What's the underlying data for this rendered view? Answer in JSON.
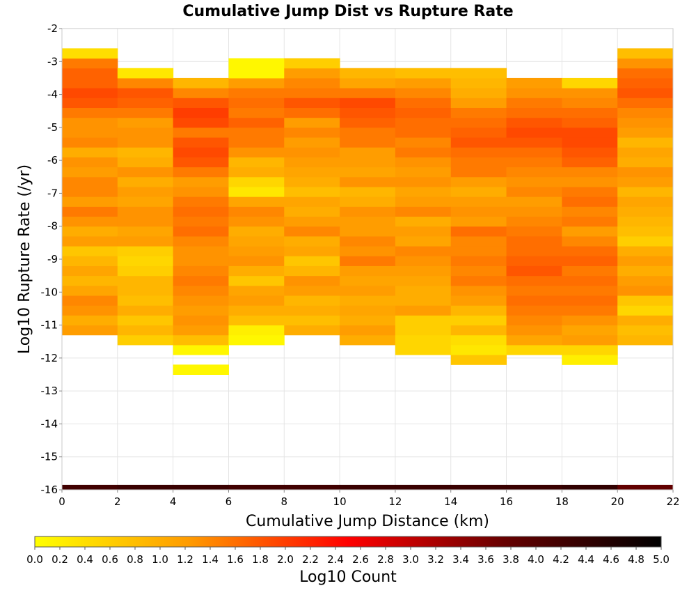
{
  "chart_data": {
    "type": "heatmap",
    "title": "Cumulative Jump Dist vs Rupture Rate",
    "xlabel": "Cumulative Jump Distance (km)",
    "ylabel": "Log10 Rupture Rate (/yr)",
    "colorbar_label": "Log10 Count",
    "xlim": [
      0,
      22
    ],
    "ylim": [
      -16,
      -2
    ],
    "x_ticks": [
      "0",
      "2",
      "4",
      "6",
      "8",
      "10",
      "12",
      "14",
      "16",
      "18",
      "20",
      "22"
    ],
    "y_ticks": [
      "-2",
      "-3",
      "-4",
      "-5",
      "-6",
      "-7",
      "-8",
      "-9",
      "-10",
      "-11",
      "-12",
      "-13",
      "-14",
      "-15",
      "-16"
    ],
    "colorbar_range": [
      0,
      5
    ],
    "colorbar_ticks": [
      "0.0",
      "0.2",
      "0.4",
      "0.6",
      "0.8",
      "1.0",
      "1.2",
      "1.4",
      "1.6",
      "1.8",
      "2.0",
      "2.2",
      "2.4",
      "2.6",
      "2.8",
      "3.0",
      "3.2",
      "3.4",
      "3.6",
      "3.8",
      "4.0",
      "4.2",
      "4.4",
      "4.6",
      "4.8",
      "5.0"
    ],
    "colorscale": [
      "#ffff00",
      "#ff9900",
      "#ff0000",
      "#660000",
      "#000000"
    ],
    "grid": true,
    "x_bin_edges": [
      0,
      2,
      4,
      6,
      8,
      10,
      12,
      14,
      16,
      18,
      20,
      22
    ],
    "y_bin_height": 0.3,
    "columns": [
      {
        "y_start": -11.3,
        "values": [
          1.2,
          1.0,
          1.3,
          1.4,
          1.1,
          0.9,
          1.1,
          0.9,
          0.7,
          1.2,
          1.0,
          1.3,
          1.5,
          1.2,
          1.4,
          1.4,
          1.2,
          1.3,
          1.0,
          1.4,
          1.3,
          1.3,
          1.5,
          1.8,
          1.9,
          1.7,
          1.7,
          1.5,
          0.4
        ]
      },
      {
        "y_start": -11.6,
        "values": [
          0.6,
          0.9,
          0.7,
          1.0,
          0.8,
          0.9,
          0.9,
          0.6,
          0.5,
          0.6,
          1.2,
          1.1,
          1.3,
          1.3,
          1.1,
          1.2,
          1.0,
          1.3,
          1.0,
          0.9,
          1.3,
          1.3,
          1.2,
          1.5,
          1.7,
          1.8,
          1.4,
          0.3
        ]
      },
      {
        "y_start": -12.5,
        "values": [
          0.1,
          null,
          0.1,
          0.8,
          1.2,
          1.3,
          1.2,
          1.3,
          1.4,
          1.5,
          1.4,
          1.3,
          1.3,
          1.4,
          1.6,
          1.5,
          1.6,
          1.5,
          1.3,
          1.2,
          1.5,
          1.8,
          1.9,
          1.8,
          1.5,
          1.9,
          2.0,
          1.8,
          1.4,
          0.9
        ]
      },
      {
        "y_start": -11.6,
        "values": [
          0.1,
          0.2,
          0.8,
          1.0,
          1.2,
          1.1,
          0.7,
          1.0,
          1.3,
          1.2,
          1.1,
          1.0,
          1.3,
          1.4,
          1.1,
          0.3,
          0.5,
          1.0,
          0.9,
          1.3,
          1.5,
          1.5,
          1.7,
          1.5,
          1.6,
          1.5,
          1.2,
          0.1,
          0.1
        ]
      },
      {
        "y_start": -11.3,
        "values": [
          1.0,
          0.8,
          1.0,
          0.9,
          1.2,
          1.3,
          0.9,
          0.7,
          1.1,
          1.0,
          1.4,
          1.2,
          1.0,
          1.1,
          0.8,
          1.0,
          1.1,
          1.2,
          1.3,
          1.2,
          1.4,
          1.2,
          1.6,
          1.8,
          1.5,
          1.4,
          1.2,
          0.6
        ]
      },
      {
        "y_start": -11.6,
        "values": [
          1.0,
          1.2,
          1.0,
          1.1,
          1.0,
          1.2,
          1.1,
          1.2,
          1.5,
          1.3,
          1.4,
          1.2,
          1.2,
          1.3,
          1.0,
          0.9,
          1.3,
          1.1,
          1.2,
          1.2,
          1.5,
          1.5,
          1.7,
          1.8,
          1.9,
          1.5,
          1.1,
          0.9
        ]
      },
      {
        "y_start": -11.9,
        "values": [
          0.5,
          0.5,
          0.6,
          0.6,
          1.2,
          1.0,
          1.0,
          1.1,
          1.2,
          1.3,
          1.4,
          1.1,
          1.2,
          1.0,
          1.4,
          1.2,
          1.1,
          1.3,
          1.2,
          1.3,
          1.5,
          1.4,
          1.6,
          1.6,
          1.7,
          1.6,
          1.4,
          1.2,
          0.8
        ]
      },
      {
        "y_start": -12.2,
        "values": [
          0.7,
          0.3,
          0.4,
          0.9,
          0.6,
          0.9,
          1.2,
          1.3,
          1.5,
          1.4,
          1.5,
          1.4,
          1.4,
          1.6,
          1.2,
          1.3,
          1.2,
          1.0,
          1.2,
          1.5,
          1.5,
          1.6,
          1.8,
          1.7,
          1.6,
          1.5,
          1.2,
          1.0,
          0.9,
          0.8
        ]
      },
      {
        "y_start": -11.9,
        "values": [
          0.5,
          1.1,
          1.3,
          1.4,
          1.5,
          1.6,
          1.5,
          1.6,
          1.8,
          1.7,
          1.6,
          1.6,
          1.5,
          1.4,
          1.3,
          1.2,
          1.4,
          1.3,
          1.4,
          1.5,
          1.6,
          1.8,
          1.9,
          1.8,
          1.6,
          1.5,
          1.3,
          1.2
        ]
      },
      {
        "y_start": -12.2,
        "values": [
          0.2,
          0.5,
          1.2,
          1.1,
          1.3,
          1.5,
          1.6,
          1.5,
          1.6,
          1.5,
          1.7,
          1.6,
          1.4,
          1.2,
          1.5,
          1.4,
          1.6,
          1.5,
          1.3,
          1.4,
          1.7,
          1.8,
          1.9,
          1.9,
          1.7,
          1.6,
          1.4,
          1.3,
          0.5
        ]
      },
      {
        "y_start": -11.6,
        "values": [
          0.9,
          0.8,
          1.0,
          0.5,
          0.7,
          1.3,
          1.2,
          1.0,
          1.2,
          1.0,
          0.6,
          0.8,
          0.9,
          1.0,
          1.1,
          0.9,
          1.2,
          1.3,
          1.0,
          1.1,
          0.9,
          1.2,
          1.3,
          1.4,
          1.6,
          1.8,
          1.7,
          1.6,
          1.3,
          0.8
        ]
      }
    ],
    "bottom_row": {
      "y": -16.0,
      "values": [
        4.2,
        4.3,
        4.3,
        4.2,
        4.2,
        4.3,
        4.3,
        4.3,
        4.3,
        4.4,
        3.8
      ]
    }
  }
}
